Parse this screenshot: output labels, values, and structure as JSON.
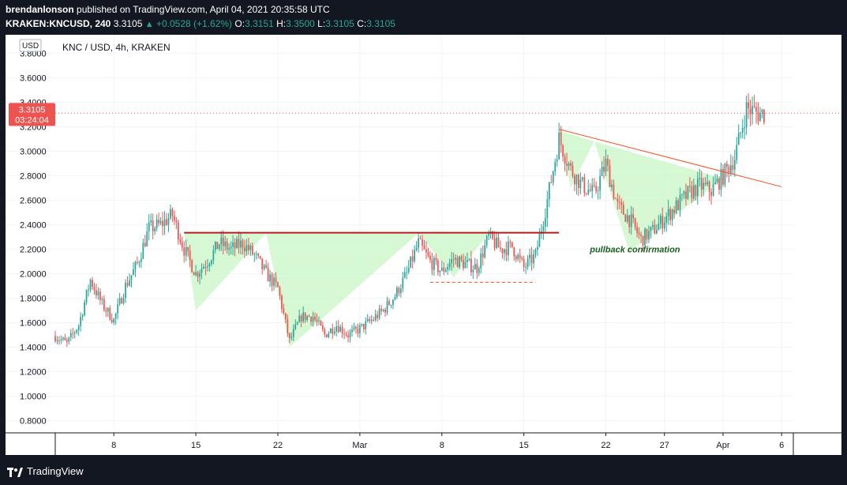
{
  "header": {
    "author": "brendanlonson",
    "published": "published on TradingView.com, April 04, 2021 20:35:58 UTC",
    "symbol": "KRAKEN:KNCUSD, 240",
    "last": "3.3105",
    "arrow": "▲",
    "change": "+0.0528 (+1.62%)",
    "o_label": "O:",
    "o_value": "3.3151",
    "h_label": "H:",
    "h_value": "3.3500",
    "l_label": "L:",
    "l_value": "3.3105",
    "c_label": "C:",
    "c_value": "3.3105"
  },
  "footer": {
    "brand": "TradingView"
  },
  "colors": {
    "up": "#26a69a",
    "down": "#ef5350",
    "resistance": "#b71c1c",
    "pattern_fill": "#c8f7c5",
    "trendline": "#f4511e",
    "support": "#f4511e",
    "price_tag": "#ef5350",
    "annotation": "#1b5e20"
  },
  "chart_data": {
    "type": "candlestick",
    "title": "KNC / USD, 4h, KRAKEN",
    "currency": "USD",
    "y_range": [
      0.7,
      3.9
    ],
    "y_ticks": [
      "0.8000",
      "1.0000",
      "1.2000",
      "1.4000",
      "1.6000",
      "1.8000",
      "2.0000",
      "2.2000",
      "2.4000",
      "2.6000",
      "2.8000",
      "3.0000",
      "3.2000",
      "3.4000",
      "3.6000",
      "3.8000"
    ],
    "x_start": "2021-02-03",
    "x_end": "2021-04-07",
    "x_ticks": [
      {
        "date": "2021-02-08",
        "label": "8"
      },
      {
        "date": "2021-02-15",
        "label": "15"
      },
      {
        "date": "2021-02-22",
        "label": "22"
      },
      {
        "date": "2021-03-01",
        "label": "Mar"
      },
      {
        "date": "2021-03-08",
        "label": "8"
      },
      {
        "date": "2021-03-15",
        "label": "15"
      },
      {
        "date": "2021-03-22",
        "label": "22"
      },
      {
        "date": "2021-03-27",
        "label": "27"
      },
      {
        "date": "2021-04-01",
        "label": "Apr"
      },
      {
        "date": "2021-04-06",
        "label": "6"
      }
    ],
    "price_path": [
      [
        "2021-02-03",
        1.49
      ],
      [
        "2021-02-04",
        1.43
      ],
      [
        "2021-02-05",
        1.58
      ],
      [
        "2021-02-06",
        1.95
      ],
      [
        "2021-02-07",
        1.75
      ],
      [
        "2021-02-08",
        1.62
      ],
      [
        "2021-02-09",
        1.9
      ],
      [
        "2021-02-10",
        2.08
      ],
      [
        "2021-02-11",
        2.37
      ],
      [
        "2021-02-12",
        2.4
      ],
      [
        "2021-02-13",
        2.48
      ],
      [
        "2021-02-14",
        2.2
      ],
      [
        "2021-02-15",
        2.0
      ],
      [
        "2021-02-16",
        2.1
      ],
      [
        "2021-02-17",
        2.25
      ],
      [
        "2021-02-18",
        2.2
      ],
      [
        "2021-02-19",
        2.25
      ],
      [
        "2021-02-20",
        2.15
      ],
      [
        "2021-02-21",
        2.0
      ],
      [
        "2021-02-22",
        1.88
      ],
      [
        "2021-02-23",
        1.45
      ],
      [
        "2021-02-24",
        1.65
      ],
      [
        "2021-02-25",
        1.65
      ],
      [
        "2021-02-26",
        1.5
      ],
      [
        "2021-02-27",
        1.58
      ],
      [
        "2021-02-28",
        1.5
      ],
      [
        "2021-03-01",
        1.55
      ],
      [
        "2021-03-02",
        1.62
      ],
      [
        "2021-03-03",
        1.7
      ],
      [
        "2021-03-04",
        1.82
      ],
      [
        "2021-03-05",
        2.0
      ],
      [
        "2021-03-06",
        2.25
      ],
      [
        "2021-03-07",
        2.1
      ],
      [
        "2021-03-08",
        2.02
      ],
      [
        "2021-03-09",
        2.12
      ],
      [
        "2021-03-10",
        2.08
      ],
      [
        "2021-03-11",
        2.05
      ],
      [
        "2021-03-12",
        2.3
      ],
      [
        "2021-03-13",
        2.2
      ],
      [
        "2021-03-14",
        2.22
      ],
      [
        "2021-03-15",
        2.05
      ],
      [
        "2021-03-16",
        2.15
      ],
      [
        "2021-03-17",
        2.6
      ],
      [
        "2021-03-18",
        3.1
      ],
      [
        "2021-03-19",
        2.85
      ],
      [
        "2021-03-20",
        2.72
      ],
      [
        "2021-03-21",
        2.65
      ],
      [
        "2021-03-22",
        2.9
      ],
      [
        "2021-03-23",
        2.55
      ],
      [
        "2021-03-24",
        2.45
      ],
      [
        "2021-03-25",
        2.28
      ],
      [
        "2021-03-26",
        2.35
      ],
      [
        "2021-03-27",
        2.45
      ],
      [
        "2021-03-28",
        2.55
      ],
      [
        "2021-03-29",
        2.65
      ],
      [
        "2021-03-30",
        2.72
      ],
      [
        "2021-03-31",
        2.68
      ],
      [
        "2021-04-01",
        2.8
      ],
      [
        "2021-04-02",
        2.95
      ],
      [
        "2021-04-03",
        3.35
      ],
      [
        "2021-04-04",
        3.31
      ]
    ],
    "last_price": {
      "value": 3.3105,
      "label": "3.3105",
      "countdown": "03:24:04"
    },
    "annotations": {
      "resistance": {
        "y": 2.335,
        "x_from": "2021-02-14",
        "x_to": "2021-03-18"
      },
      "support": {
        "y": 1.93,
        "x_from": "2021-03-07",
        "x_to": "2021-03-16"
      },
      "trendline": {
        "from": [
          "2021-03-18",
          3.18
        ],
        "to": [
          "2021-04-06",
          2.71
        ]
      },
      "text": {
        "label": "pullback confirmation",
        "date": "2021-03-23",
        "y": 2.2
      },
      "pattern_areas": [
        [
          [
            "2021-02-14",
            2.33
          ],
          [
            "2021-02-15",
            1.7
          ],
          [
            "2021-02-21",
            2.33
          ]
        ],
        [
          [
            "2021-02-21",
            2.33
          ],
          [
            "2021-02-23",
            1.4
          ],
          [
            "2021-03-06",
            2.33
          ]
        ],
        [
          [
            "2021-03-06",
            2.33
          ],
          [
            "2021-03-09",
            1.97
          ],
          [
            "2021-03-12",
            2.33
          ]
        ],
        [
          [
            "2021-03-18",
            3.17
          ],
          [
            "2021-03-19",
            2.7
          ],
          [
            "2021-03-21",
            3.08
          ]
        ],
        [
          [
            "2021-03-21",
            3.08
          ],
          [
            "2021-03-24",
            2.18
          ],
          [
            "2021-04-01",
            2.78
          ]
        ]
      ]
    }
  }
}
